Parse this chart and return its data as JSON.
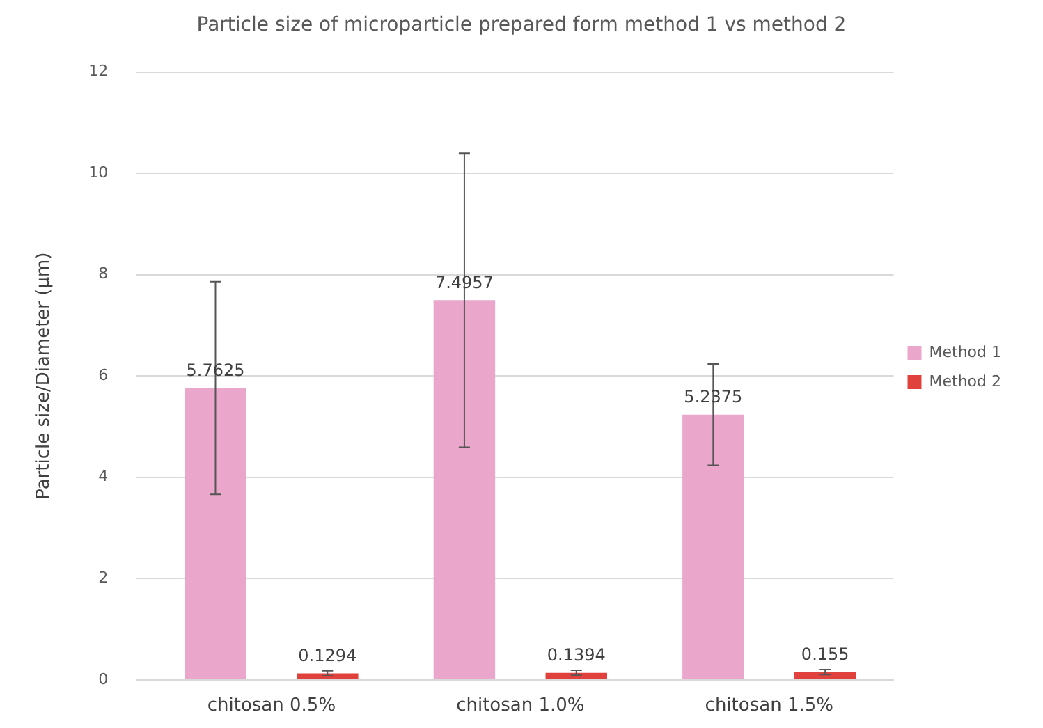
{
  "chart_data": {
    "type": "bar",
    "title": "Particle size of microparticle prepared form method 1 vs method 2",
    "ylabel": "Particle size/Diameter (μm)",
    "categories": [
      "chitosan 0.5%",
      "chitosan 1.0%",
      "chitosan 1.5%"
    ],
    "series": [
      {
        "name": "Method 1",
        "color": "#eba7cb",
        "values": [
          5.7625,
          7.4957,
          5.2375
        ],
        "errors": [
          2.1,
          2.9,
          1.0
        ]
      },
      {
        "name": "Method 2",
        "color": "#e0413c",
        "values": [
          0.1294,
          0.1394,
          0.155
        ],
        "errors": [
          0.05,
          0.05,
          0.05
        ]
      }
    ],
    "ylim": [
      0,
      12
    ],
    "yticks": [
      0,
      2,
      4,
      6,
      8,
      10,
      12
    ],
    "grid": "y",
    "legend": "right",
    "data_labels": true
  }
}
